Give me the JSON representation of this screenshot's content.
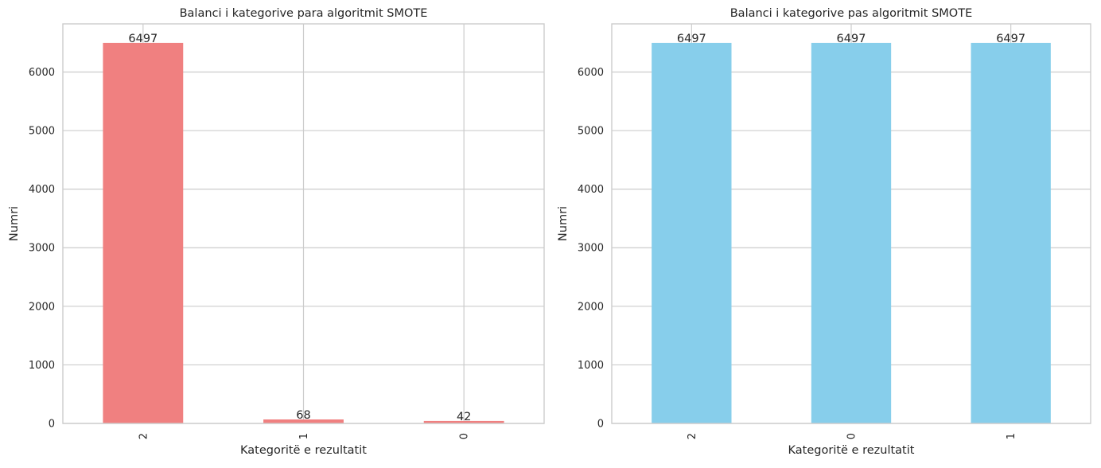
{
  "chart_data": [
    {
      "type": "bar",
      "title": "Balanci i kategorive para algoritmit SMOTE",
      "xlabel": "Kategoritë e rezultatit",
      "ylabel": "Numri",
      "categories": [
        "2",
        "1",
        "0"
      ],
      "values": [
        6497,
        68,
        42
      ],
      "data_labels": [
        "6497",
        "68",
        "42"
      ],
      "ylim": [
        0,
        6822
      ],
      "yticks": [
        0,
        1000,
        2000,
        3000,
        4000,
        5000,
        6000
      ],
      "ytick_labels": [
        "0",
        "1000",
        "2000",
        "3000",
        "4000",
        "5000",
        "6000"
      ],
      "grid": true,
      "bar_color": "#f08080"
    },
    {
      "type": "bar",
      "title": "Balanci i kategorive pas algoritmit SMOTE",
      "xlabel": "Kategoritë e rezultatit",
      "ylabel": "Numri",
      "categories": [
        "2",
        "0",
        "1"
      ],
      "values": [
        6497,
        6497,
        6497
      ],
      "data_labels": [
        "6497",
        "6497",
        "6497"
      ],
      "ylim": [
        0,
        6822
      ],
      "yticks": [
        0,
        1000,
        2000,
        3000,
        4000,
        5000,
        6000
      ],
      "ytick_labels": [
        "0",
        "1000",
        "2000",
        "3000",
        "4000",
        "5000",
        "6000"
      ],
      "grid": true,
      "bar_color": "#87ceeb"
    }
  ]
}
